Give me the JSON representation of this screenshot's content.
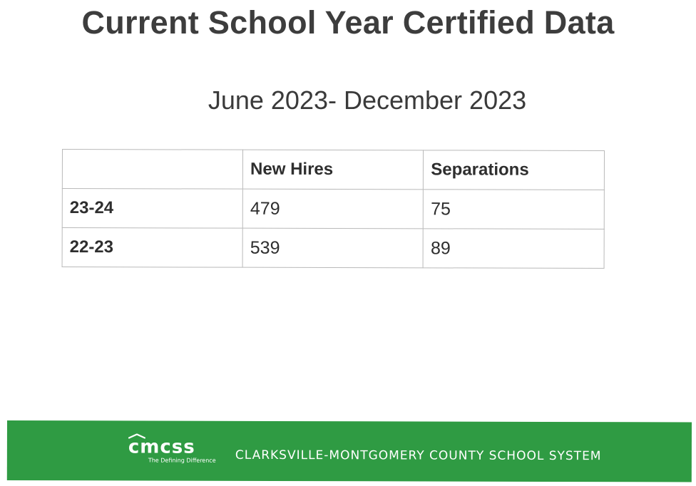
{
  "title": "Current School Year Certified Data",
  "subtitle": "June 2023- December 2023",
  "table": {
    "headers": [
      "",
      "New Hires",
      "Separations"
    ],
    "rows": [
      [
        "23-24",
        "479",
        "75"
      ],
      [
        "22-23",
        "539",
        "89"
      ]
    ]
  },
  "footer": {
    "logo_text": "cmcss",
    "tagline": "The Defining Difference",
    "org_name": "CLARKSVILLE-MONTGOMERY COUNTY SCHOOL SYSTEM",
    "background_color": "#2f9b43"
  }
}
